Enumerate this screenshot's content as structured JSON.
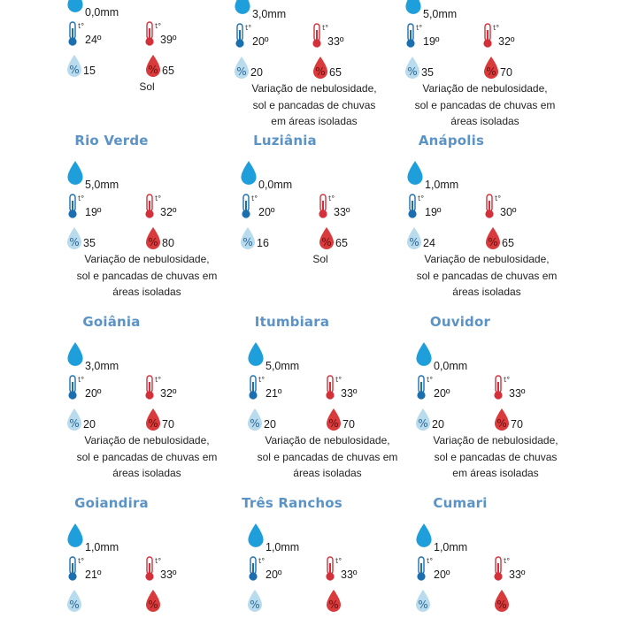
{
  "colors": {
    "city_title": "#5b93c6",
    "rain_drop": "#1e9fdc",
    "cold_thermo": "#1c6fae",
    "hot_thermo": "#d4303a",
    "low_humidity_drop": "#b9dbee",
    "high_humidity_drop": "#d93a3c"
  },
  "icons": {
    "rain": "water-drop-icon",
    "min_temp": "thermometer-blue-icon",
    "max_temp": "thermometer-red-icon",
    "min_humidity": "humidity-drop-light-icon",
    "max_humidity": "humidity-drop-red-icon"
  },
  "cities": [
    {
      "name": "",
      "rain": "0,0mm",
      "tmin": "24º",
      "tmax": "39º",
      "hmin": "15",
      "hmax": "65",
      "forecast": [
        "Sol"
      ]
    },
    {
      "name": "",
      "rain": "3,0mm",
      "tmin": "20º",
      "tmax": "33º",
      "hmin": "20",
      "hmax": "65",
      "forecast": [
        "Variação de nebulosidade,",
        "sol e pancadas de chuvas",
        "em áreas isoladas"
      ]
    },
    {
      "name": "",
      "rain": "5,0mm",
      "tmin": "19º",
      "tmax": "32º",
      "hmin": "35",
      "hmax": "70",
      "forecast": [
        "Variação de nebulosidade,",
        "sol e pancadas de chuvas em",
        "áreas isoladas"
      ]
    },
    {
      "name": "Rio Verde",
      "rain": "5,0mm",
      "tmin": "19º",
      "tmax": "32º",
      "hmin": "35",
      "hmax": "80",
      "forecast": [
        "Variação de nebulosidade,",
        "sol e pancadas de chuvas em",
        "áreas isoladas"
      ]
    },
    {
      "name": "Luziânia",
      "rain": "0,0mm",
      "tmin": "20º",
      "tmax": "33º",
      "hmin": "16",
      "hmax": "65",
      "forecast": [
        "Sol"
      ]
    },
    {
      "name": "Anápolis",
      "rain": "1,0mm",
      "tmin": "19º",
      "tmax": "30º",
      "hmin": "24",
      "hmax": "65",
      "forecast": [
        "Variação de nebulosidade,",
        "sol e pancadas de chuvas em",
        "áreas isoladas"
      ]
    },
    {
      "name": "Goiânia",
      "rain": "3,0mm",
      "tmin": "20º",
      "tmax": "32º",
      "hmin": "20",
      "hmax": "70",
      "forecast": [
        "Variação de nebulosidade,",
        "sol e pancadas de chuvas em",
        "áreas isoladas"
      ]
    },
    {
      "name": "Itumbiara",
      "rain": "5,0mm",
      "tmin": "21º",
      "tmax": "33º",
      "hmin": "20",
      "hmax": "70",
      "forecast": [
        "Variação de nebulosidade,",
        "sol e pancadas de chuvas em",
        "áreas isoladas"
      ]
    },
    {
      "name": "Ouvidor",
      "rain": "0,0mm",
      "tmin": "20º",
      "tmax": "33º",
      "hmin": "20",
      "hmax": "70",
      "forecast": [
        "Variação de nebulosidade,",
        "sol e pancadas de chuvas",
        "em áreas isoladas"
      ]
    },
    {
      "name": "Goiandira",
      "rain": "1,0mm",
      "tmin": "21º",
      "tmax": "33º",
      "hmin": "",
      "hmax": "",
      "forecast": []
    },
    {
      "name": "Três Ranchos",
      "rain": "1,0mm",
      "tmin": "20º",
      "tmax": "33º",
      "hmin": "",
      "hmax": "",
      "forecast": []
    },
    {
      "name": "Cumari",
      "rain": "1,0mm",
      "tmin": "20º",
      "tmax": "33º",
      "hmin": "",
      "hmax": "",
      "forecast": []
    }
  ]
}
